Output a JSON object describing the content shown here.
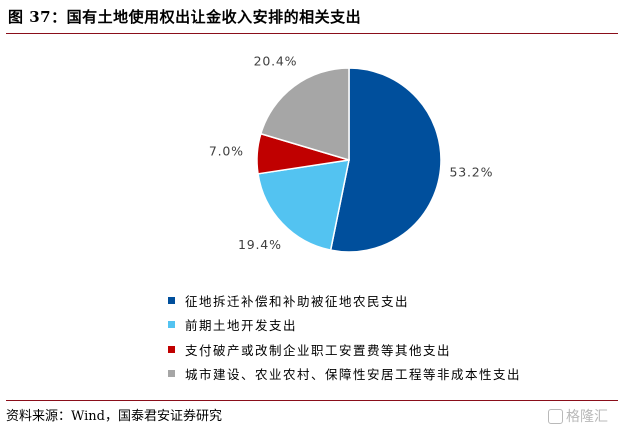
{
  "figure": {
    "title": "图 37：国有土地使用权出让金收入安排的相关支出",
    "source": "资料来源：Wind，国泰君安证券研究",
    "watermark": "格隆汇"
  },
  "colors": {
    "title_rule": "#8a0e1a",
    "label_text": "#404040"
  },
  "chart_data": {
    "type": "pie",
    "start_angle_deg": 0,
    "direction": "clockwise",
    "slices": [
      {
        "label": "征地拆迁补偿和补助被征地农民支出",
        "value": 53.2,
        "value_label": "53.2%",
        "color": "#004f9c"
      },
      {
        "label": "前期土地开发支出",
        "value": 19.4,
        "value_label": "19.4%",
        "color": "#53c3f1"
      },
      {
        "label": "支付破产或改制企业职工安置费等其他支出",
        "value": 7.0,
        "value_label": "7.0%",
        "color": "#c00000"
      },
      {
        "label": "城市建设、农业农村、保障性安居工程等非成本性支出",
        "value": 20.4,
        "value_label": "20.4%",
        "color": "#a6a6a6"
      }
    ],
    "legend_position": "bottom"
  }
}
